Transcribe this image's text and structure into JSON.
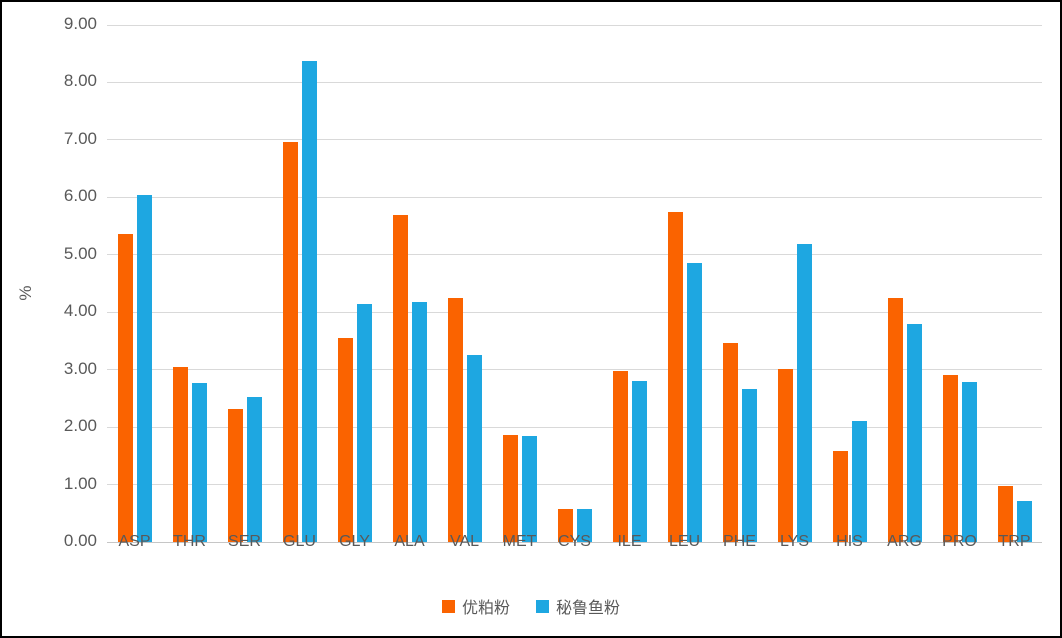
{
  "chart_data": {
    "type": "bar",
    "title": "",
    "xlabel": "",
    "ylabel": "%",
    "ylim": [
      0,
      9
    ],
    "ytick_step": 1,
    "ytick_decimals": 2,
    "grid": true,
    "legend_position": "bottom",
    "categories": [
      "ASP",
      "THR",
      "SER",
      "GLU",
      "GLY",
      "ALA",
      "VAL",
      "MET",
      "CYS",
      "ILE",
      "LEU",
      "PHE",
      "LYS",
      "HIS",
      "ARG",
      "PRO",
      "TRP"
    ],
    "series": [
      {
        "name": "优粕粉",
        "color": "#fa6300",
        "values": [
          5.37,
          3.05,
          2.32,
          6.97,
          3.55,
          5.69,
          4.25,
          1.87,
          0.58,
          2.98,
          5.75,
          3.47,
          3.02,
          1.59,
          4.25,
          2.91,
          0.97
        ]
      },
      {
        "name": "秘鲁鱼粉",
        "color": "#1ea7e1",
        "values": [
          6.04,
          2.76,
          2.52,
          8.37,
          4.15,
          4.18,
          3.26,
          1.85,
          0.57,
          2.8,
          4.86,
          2.66,
          5.18,
          2.1,
          3.79,
          2.79,
          0.72
        ]
      }
    ]
  },
  "colors": {
    "gridline": "#d9d9d9",
    "axis_line": "#c6c6c6",
    "tick_text": "#595959",
    "background": "#ffffff",
    "frame_border": "#000000"
  }
}
